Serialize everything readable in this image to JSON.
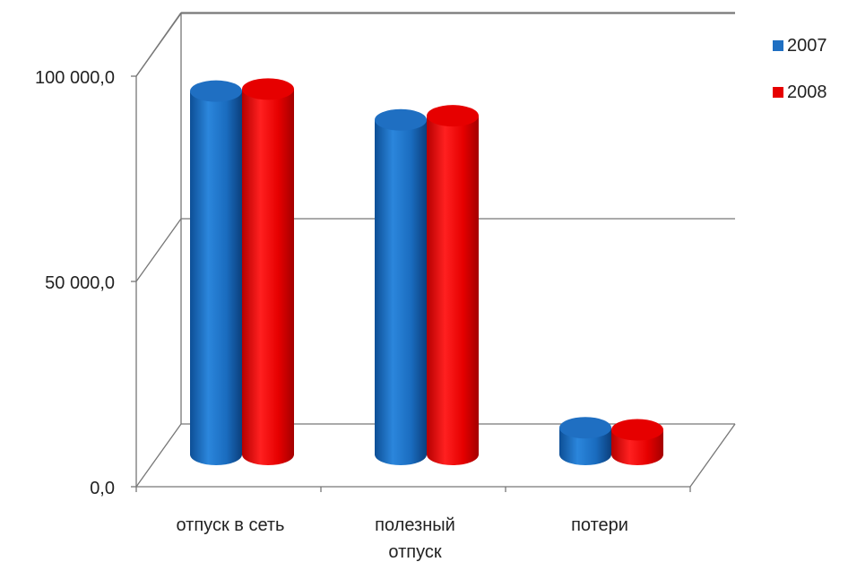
{
  "chart_data": {
    "type": "bar",
    "style": "3d-cylinder",
    "categories": [
      [
        "отпуск в сеть"
      ],
      [
        "полезный",
        "отпуск"
      ],
      [
        "потери"
      ]
    ],
    "series": [
      {
        "name": "2007",
        "color": "#1F6FC2",
        "values": [
          88500,
          81500,
          6500
        ]
      },
      {
        "name": "2008",
        "color": "#E60000",
        "values": [
          89000,
          82500,
          6000
        ]
      }
    ],
    "y_ticks": [
      "0,0",
      "50 000,0",
      "100 000,0"
    ],
    "ylim": [
      0,
      100000
    ],
    "gridlines": true,
    "legend": "top-right"
  }
}
